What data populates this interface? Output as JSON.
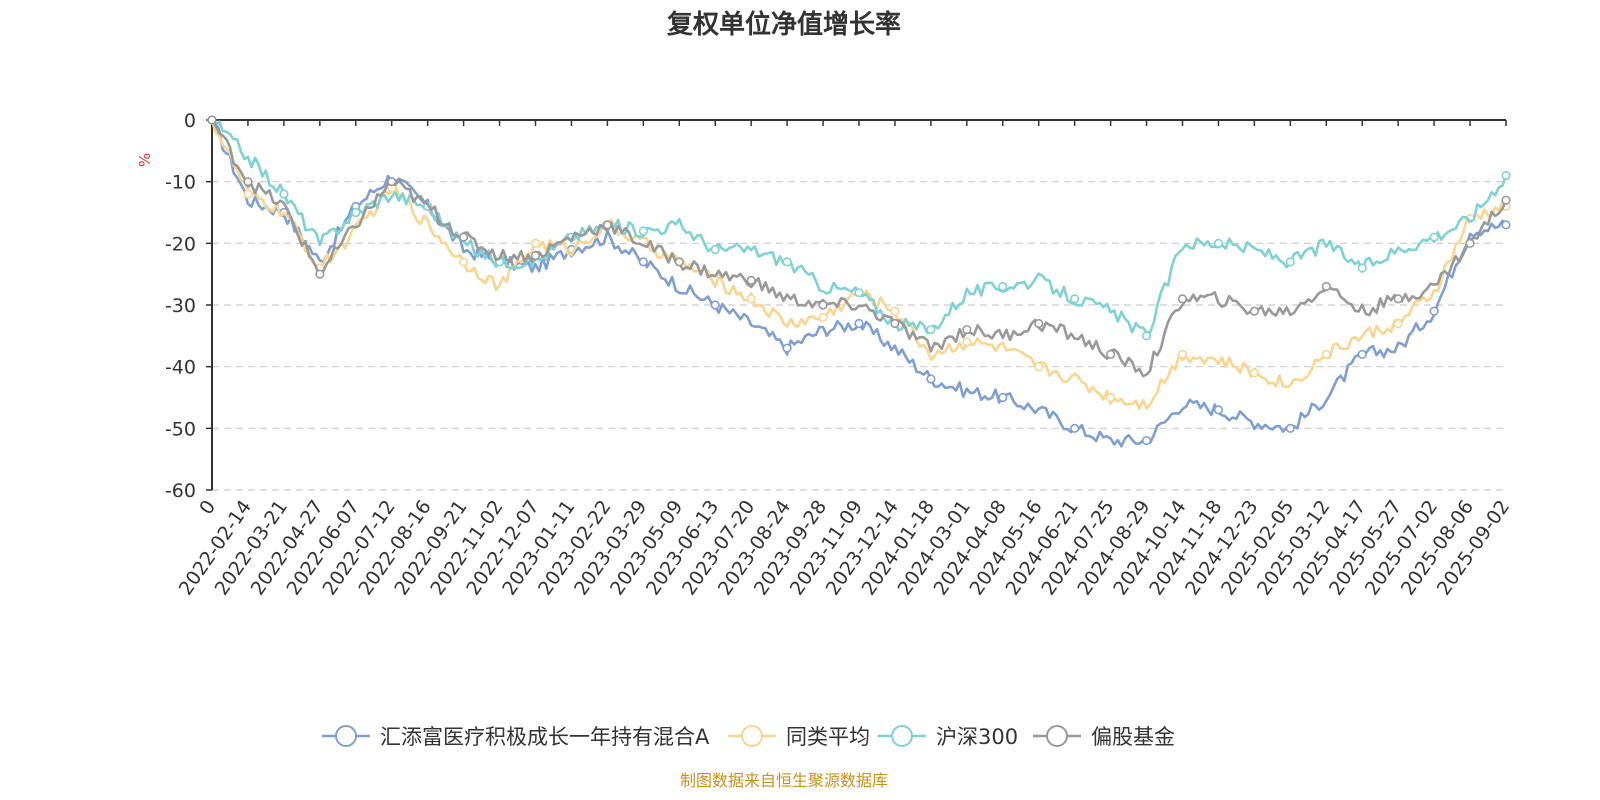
{
  "title": "复权单位净值增长率",
  "source_note": "制图数据来自恒生聚源数据库",
  "chart_data": {
    "type": "line",
    "ylabel": "%",
    "ylim": [
      -60,
      0
    ],
    "y_ticks": [
      0,
      -10,
      -20,
      -30,
      -40,
      -50,
      -60
    ],
    "grid": true,
    "legend_position": "bottom",
    "x_tick_labels": [
      "0",
      "2022-02-14",
      "2022-03-21",
      "2022-04-27",
      "2022-06-07",
      "2022-07-12",
      "2022-08-16",
      "2022-09-21",
      "2022-11-02",
      "2022-12-07",
      "2023-01-11",
      "2023-02-22",
      "2023-03-29",
      "2023-05-09",
      "2023-06-13",
      "2023-07-20",
      "2023-08-24",
      "2023-09-28",
      "2023-11-09",
      "2023-12-14",
      "2024-01-18",
      "2024-03-01",
      "2024-04-08",
      "2024-05-16",
      "2024-06-21",
      "2024-07-25",
      "2024-08-29",
      "2024-10-14",
      "2024-11-18",
      "2024-12-23",
      "2025-02-05",
      "2025-03-12",
      "2025-04-17",
      "2025-05-27",
      "2025-07-02",
      "2025-08-06",
      "2025-09-02"
    ],
    "series": [
      {
        "name": "汇添富医疗积极成长一年持有混合A",
        "color": "#7f9fd2",
        "values": [
          0,
          -13,
          -15,
          -23,
          -14,
          -9,
          -14,
          -21,
          -23,
          -24,
          -21,
          -19,
          -23,
          -27,
          -30,
          -33,
          -37,
          -34,
          -33,
          -37,
          -42,
          -44,
          -45,
          -47,
          -50,
          -52,
          -52,
          -46,
          -47,
          -49,
          -50,
          -45,
          -38,
          -37,
          -31,
          -18,
          -17
        ]
      },
      {
        "name": "同类平均",
        "color": "#f9d590",
        "values": [
          0,
          -12,
          -15,
          -24,
          -18,
          -11,
          -17,
          -23,
          -27,
          -20,
          -21,
          -17,
          -20,
          -23,
          -26,
          -29,
          -33,
          -32,
          -28,
          -31,
          -38,
          -36,
          -37,
          -40,
          -42,
          -45,
          -46,
          -38,
          -39,
          -41,
          -43,
          -38,
          -35,
          -33,
          -28,
          -16,
          -14
        ]
      },
      {
        "name": "沪深300",
        "color": "#7fd1d2",
        "values": [
          0,
          -6,
          -12,
          -20,
          -15,
          -12,
          -14,
          -20,
          -23,
          -23,
          -19,
          -17,
          -18,
          -17,
          -21,
          -21,
          -23,
          -27,
          -28,
          -33,
          -34,
          -28,
          -27,
          -26,
          -29,
          -31,
          -35,
          -20,
          -20,
          -21,
          -23,
          -20,
          -24,
          -21,
          -19,
          -16,
          -9
        ]
      },
      {
        "name": "偏股基金",
        "color": "#999999",
        "values": [
          0,
          -10,
          -14,
          -25,
          -17,
          -10,
          -14,
          -19,
          -22,
          -22,
          -19,
          -17,
          -20,
          -23,
          -25,
          -26,
          -29,
          -30,
          -30,
          -33,
          -37,
          -34,
          -35,
          -33,
          -35,
          -38,
          -41,
          -29,
          -29,
          -31,
          -31,
          -27,
          -31,
          -29,
          -27,
          -20,
          -13
        ]
      }
    ]
  }
}
